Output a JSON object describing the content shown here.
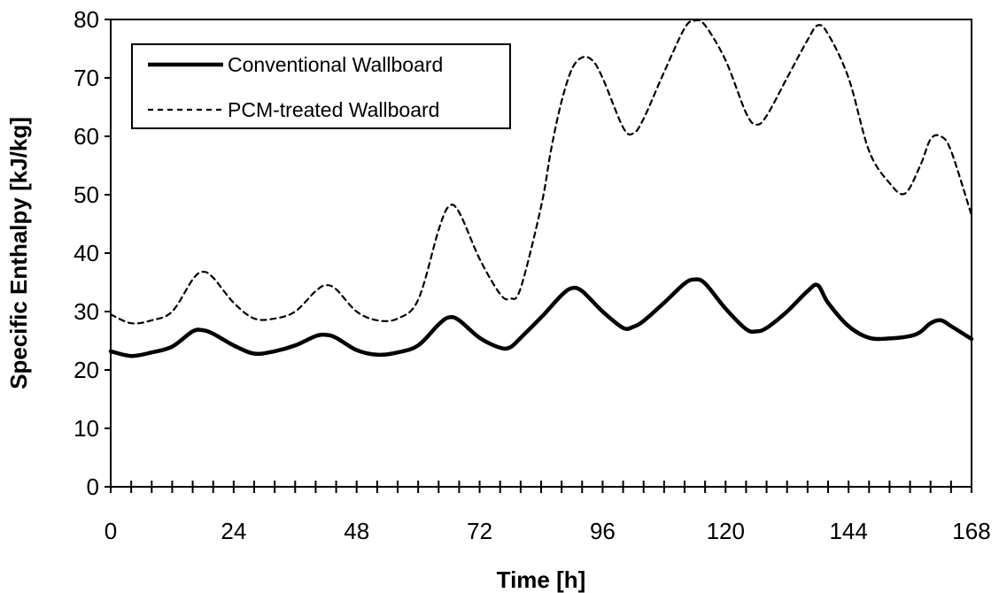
{
  "chart_data": {
    "type": "line",
    "title": "",
    "xlabel": "Time [h]",
    "ylabel": "Specific Enthalpy [kJ/kg]",
    "xlim": [
      0,
      168
    ],
    "ylim": [
      0,
      80
    ],
    "x_ticks": [
      0,
      24,
      48,
      72,
      96,
      120,
      144,
      168
    ],
    "x_tick_labels": [
      "0",
      "24",
      "48",
      "72",
      "96",
      "120",
      "144",
      "168"
    ],
    "y_ticks": [
      0,
      10,
      20,
      30,
      40,
      50,
      60,
      70,
      80
    ],
    "y_tick_labels": [
      "0",
      "10",
      "20",
      "30",
      "40",
      "50",
      "60",
      "70",
      "80"
    ],
    "grid": false,
    "legend_position": "top-left",
    "series": [
      {
        "name": "Conventional Wallboard",
        "style": "solid-thick",
        "color": "#000000",
        "x": [
          0,
          4,
          8,
          12,
          16,
          18,
          20,
          24,
          28,
          32,
          36,
          40,
          42,
          44,
          48,
          52,
          56,
          60,
          64,
          66,
          68,
          72,
          76,
          78,
          80,
          84,
          88,
          90,
          92,
          96,
          100,
          102,
          104,
          108,
          112,
          114,
          116,
          120,
          124,
          126,
          128,
          132,
          136,
          138,
          140,
          144,
          148,
          152,
          156,
          158,
          160,
          162,
          164,
          168
        ],
        "y": [
          23.2,
          22.4,
          23.0,
          24.0,
          26.6,
          26.8,
          26.2,
          24.2,
          22.8,
          23.2,
          24.2,
          25.8,
          26.0,
          25.5,
          23.4,
          22.6,
          23.0,
          24.2,
          27.8,
          29.0,
          28.5,
          25.5,
          23.8,
          23.9,
          25.5,
          29.0,
          32.8,
          34.0,
          33.5,
          30.0,
          27.2,
          27.4,
          28.4,
          31.5,
          34.8,
          35.5,
          34.8,
          30.5,
          27.0,
          26.6,
          27.2,
          30.0,
          33.5,
          34.5,
          31.5,
          27.5,
          25.5,
          25.4,
          25.8,
          26.5,
          28.0,
          28.5,
          27.5,
          25.3
        ]
      },
      {
        "name": "PCM-treated Wallboard",
        "style": "dashed",
        "color": "#000000",
        "x": [
          0,
          4,
          8,
          12,
          16,
          18,
          20,
          24,
          28,
          32,
          36,
          40,
          42,
          44,
          48,
          52,
          56,
          60,
          64,
          66,
          68,
          72,
          76,
          78,
          80,
          84,
          86,
          88,
          90,
          92,
          94,
          96,
          100,
          102,
          104,
          108,
          112,
          114,
          116,
          120,
          124,
          126,
          128,
          132,
          136,
          138,
          140,
          144,
          148,
          152,
          155,
          158,
          160,
          162,
          164,
          168
        ],
        "y": [
          29.5,
          28.0,
          28.5,
          30.0,
          35.5,
          36.8,
          35.8,
          31.5,
          28.8,
          28.8,
          30.0,
          33.5,
          34.5,
          33.8,
          30.0,
          28.5,
          28.8,
          32.0,
          44.0,
          48.0,
          47.0,
          39.0,
          33.0,
          32.2,
          34.0,
          48.0,
          58.0,
          66.0,
          71.5,
          73.5,
          73.0,
          70.0,
          61.5,
          60.5,
          63.0,
          71.0,
          78.5,
          79.8,
          79.0,
          73.0,
          64.0,
          62.0,
          63.5,
          70.0,
          76.5,
          79.0,
          77.5,
          70.0,
          57.5,
          52.0,
          50.2,
          55.0,
          59.5,
          60.0,
          57.5,
          46.5
        ]
      }
    ]
  }
}
